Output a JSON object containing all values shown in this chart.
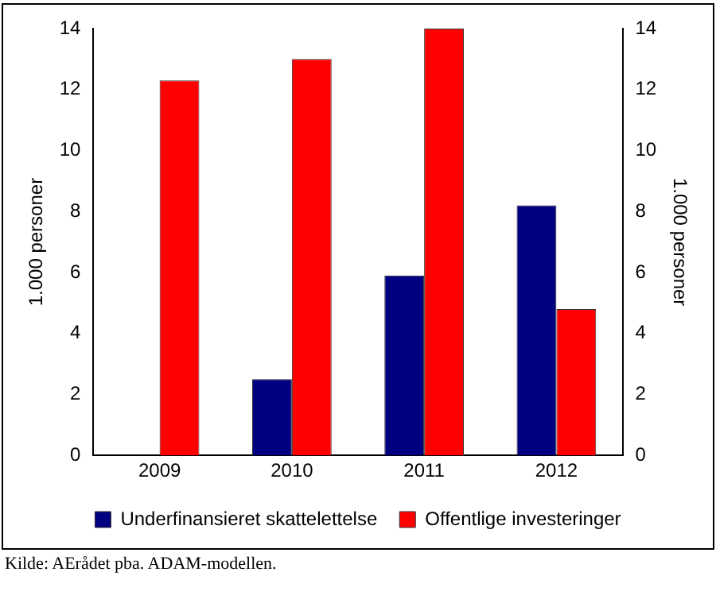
{
  "chart_data": {
    "type": "bar",
    "categories": [
      "2009",
      "2010",
      "2011",
      "2012"
    ],
    "series": [
      {
        "name": "Underfinansieret skattelettelse",
        "color": "#000080",
        "values": [
          null,
          2.5,
          5.9,
          8.2
        ]
      },
      {
        "name": "Offentlige investeringer",
        "color": "#ff0000",
        "values": [
          12.3,
          13.0,
          14.0,
          4.8
        ]
      }
    ],
    "ylabel": "1.000 personer",
    "y2label": "1.000 personer",
    "ylim": [
      0,
      14
    ],
    "yticks": [
      0,
      2,
      4,
      6,
      8,
      10,
      12,
      14
    ],
    "y2lim": [
      0,
      14
    ],
    "y2ticks": [
      0,
      2,
      4,
      6,
      8,
      10,
      12,
      14
    ],
    "legend": "bottom",
    "grid": false,
    "annotations": [
      "Kilde: AErådet pba. ADAM-modellen."
    ]
  }
}
